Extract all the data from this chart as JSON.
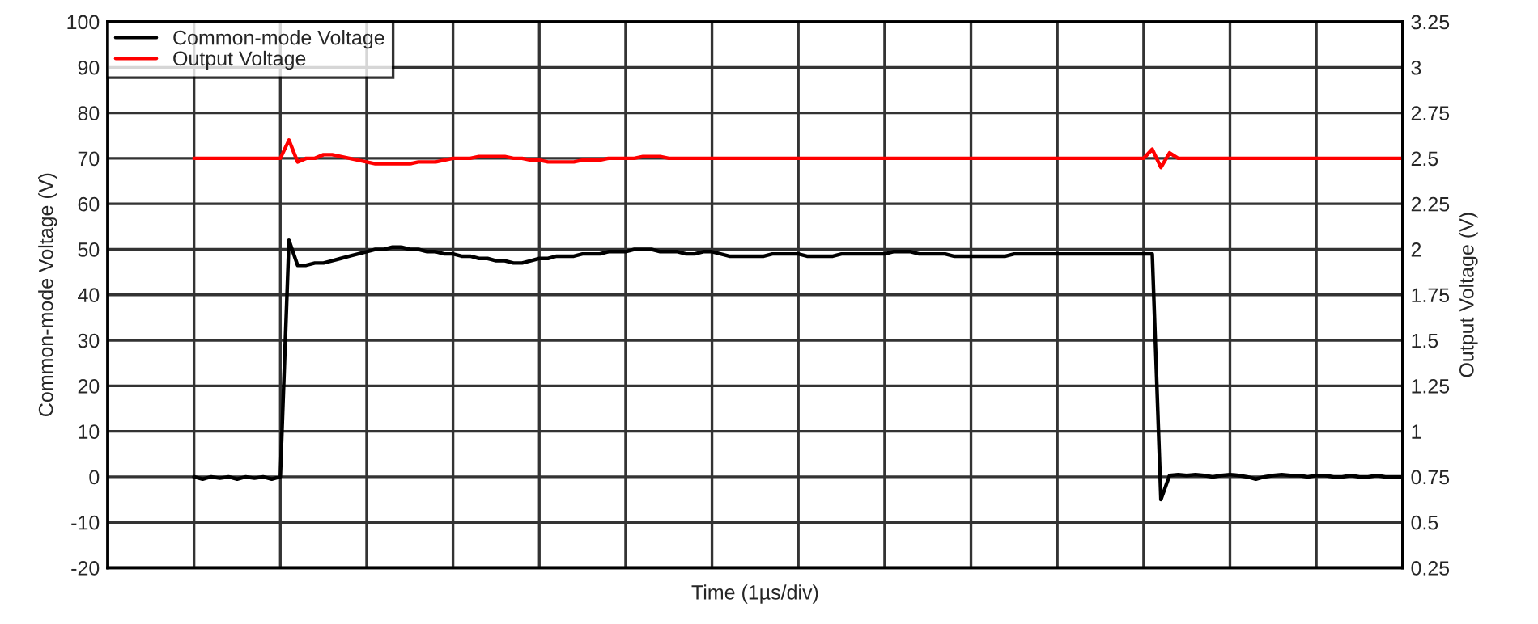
{
  "chart_data": {
    "type": "line",
    "xlabel": "Time (1µs/div)",
    "ylabel": "Common-mode Voltage (V)",
    "y2label": "Output Voltage (V)",
    "categories": [
      null,
      null,
      null,
      null,
      null,
      null,
      null,
      null,
      null,
      null,
      null,
      null,
      null,
      null,
      null,
      null,
      null,
      null,
      null,
      null,
      null,
      null,
      null,
      null,
      null,
      null,
      null,
      null,
      null,
      null,
      null,
      null,
      null,
      null,
      null,
      null,
      null,
      null,
      null,
      null,
      null,
      null,
      null,
      null,
      null,
      null,
      null,
      null,
      null,
      null,
      null,
      null,
      null,
      null,
      null,
      null,
      null,
      null,
      null,
      null,
      null,
      null,
      null,
      null,
      null,
      null,
      null,
      null,
      null,
      null,
      null,
      null,
      null,
      null,
      null,
      null,
      null,
      null,
      null,
      null,
      null,
      null,
      null,
      null,
      null,
      null,
      null,
      null,
      null,
      null,
      null,
      null,
      null,
      null,
      null,
      null,
      null,
      null,
      null,
      null,
      null,
      null,
      null,
      null,
      null,
      null,
      null,
      null,
      null,
      null,
      null,
      null,
      null,
      null,
      null,
      null,
      null,
      null,
      null,
      null,
      null,
      null,
      null,
      null,
      null,
      null,
      null,
      null,
      null,
      null,
      null,
      null,
      null,
      null,
      null,
      null,
      null,
      null,
      null,
      null,
      null,
      null,
      null,
      null,
      null,
      null,
      null,
      null,
      null,
      null,
      null
    ],
    "ylim": [
      -20,
      100
    ],
    "yticks": [
      -20,
      -10,
      0,
      10,
      20,
      30,
      40,
      50,
      60,
      70,
      80,
      90,
      100
    ],
    "y2lim": [
      0.25,
      3.25
    ],
    "y2ticks": [
      0.25,
      0.5,
      0.75,
      1,
      1.25,
      1.5,
      1.75,
      2,
      2.25,
      2.5,
      2.75,
      3,
      3.25
    ],
    "grid": true,
    "legend": "top left",
    "series": [
      {
        "name": "Common-mode Voltage",
        "color": "#000000",
        "values": [
          null,
          null,
          null,
          null,
          null,
          null,
          null,
          null,
          null,
          null,
          0,
          -0.5,
          0,
          -0.3,
          0,
          -0.5,
          0,
          -0.3,
          0,
          -0.5,
          0,
          52,
          46.5,
          46.5,
          47,
          47,
          47.5,
          48,
          48.5,
          49,
          49.5,
          50,
          50,
          50.5,
          50.5,
          50,
          50,
          49.5,
          49.5,
          49,
          49,
          48.5,
          48.5,
          48,
          48,
          47.5,
          47.5,
          47,
          47,
          47.5,
          48,
          48,
          48.5,
          48.5,
          48.5,
          49,
          49,
          49,
          49.5,
          49.5,
          49.5,
          50,
          50,
          50,
          49.5,
          49.5,
          49.5,
          49,
          49,
          49.5,
          49.5,
          49,
          48.5,
          48.5,
          48.5,
          48.5,
          48.5,
          49,
          49,
          49,
          49,
          48.5,
          48.5,
          48.5,
          48.5,
          49,
          49,
          49,
          49,
          49,
          49,
          49.5,
          49.5,
          49.5,
          49,
          49,
          49,
          49,
          48.5,
          48.5,
          48.5,
          48.5,
          48.5,
          48.5,
          48.5,
          49,
          49,
          49,
          49,
          49,
          49,
          49,
          49,
          49,
          49,
          49,
          49,
          49,
          49,
          49,
          49,
          49,
          -5,
          0.3,
          0.5,
          0.3,
          0.5,
          0.3,
          0,
          0.3,
          0.5,
          0.3,
          0,
          -0.5,
          0,
          0.3,
          0.5,
          0.3,
          0.3,
          0,
          0.3,
          0.3,
          0,
          0,
          0.3,
          0,
          0,
          0.3,
          0,
          0,
          0
        ]
      },
      {
        "name": "Output Voltage",
        "color": "#ff0000",
        "axis": "y2",
        "values": [
          null,
          null,
          null,
          null,
          null,
          null,
          null,
          null,
          null,
          null,
          2.5,
          2.5,
          2.5,
          2.5,
          2.5,
          2.5,
          2.5,
          2.5,
          2.5,
          2.5,
          2.5,
          2.6,
          2.48,
          2.5,
          2.5,
          2.52,
          2.52,
          2.51,
          2.5,
          2.49,
          2.48,
          2.47,
          2.47,
          2.47,
          2.47,
          2.47,
          2.48,
          2.48,
          2.48,
          2.49,
          2.5,
          2.5,
          2.5,
          2.51,
          2.51,
          2.51,
          2.51,
          2.5,
          2.5,
          2.49,
          2.49,
          2.48,
          2.48,
          2.48,
          2.48,
          2.49,
          2.49,
          2.49,
          2.5,
          2.5,
          2.5,
          2.5,
          2.51,
          2.51,
          2.51,
          2.5,
          2.5,
          2.5,
          2.5,
          2.5,
          2.5,
          2.5,
          2.5,
          2.5,
          2.5,
          2.5,
          2.5,
          2.5,
          2.5,
          2.5,
          2.5,
          2.5,
          2.5,
          2.5,
          2.5,
          2.5,
          2.5,
          2.5,
          2.5,
          2.5,
          2.5,
          2.5,
          2.5,
          2.5,
          2.5,
          2.5,
          2.5,
          2.5,
          2.5,
          2.5,
          2.5,
          2.5,
          2.5,
          2.5,
          2.5,
          2.5,
          2.5,
          2.5,
          2.5,
          2.5,
          2.5,
          2.5,
          2.5,
          2.5,
          2.5,
          2.5,
          2.5,
          2.5,
          2.5,
          2.5,
          2.5,
          2.55,
          2.45,
          2.53,
          2.5,
          2.5,
          2.5,
          2.5,
          2.5,
          2.5,
          2.5,
          2.5,
          2.5,
          2.5,
          2.5,
          2.5,
          2.5,
          2.5,
          2.5,
          2.5,
          2.5,
          2.5,
          2.5,
          2.5,
          2.5,
          2.5,
          2.5,
          2.5,
          2.5,
          2.5,
          2.5
        ]
      }
    ]
  }
}
